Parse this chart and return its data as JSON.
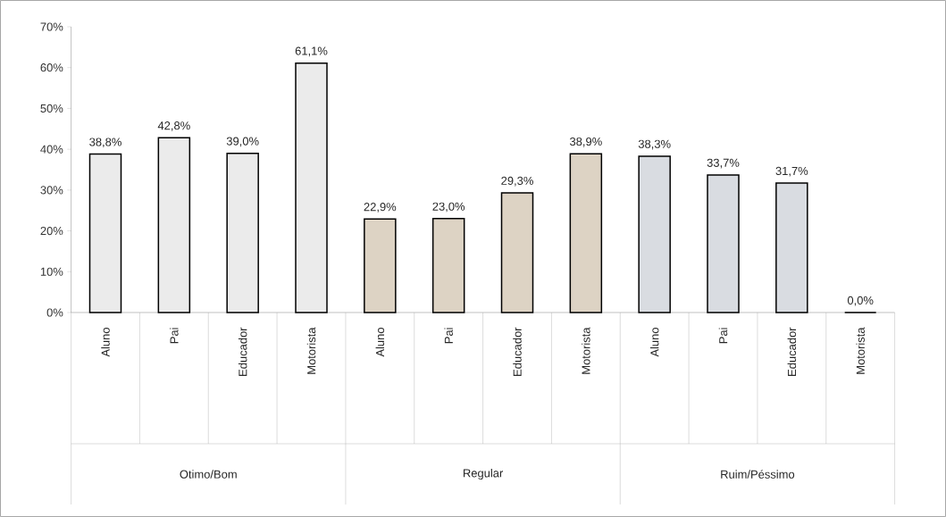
{
  "chart_data": {
    "type": "bar",
    "categories": [
      "Aluno",
      "Pai",
      "Educador",
      "Motorista",
      "Aluno",
      "Pai",
      "Educador",
      "Motorista",
      "Aluno",
      "Pai",
      "Educador",
      "Motorista"
    ],
    "values": [
      38.8,
      42.8,
      39.0,
      61.1,
      22.9,
      23.0,
      29.3,
      38.9,
      38.3,
      33.7,
      31.7,
      0.0
    ],
    "value_labels": [
      "38,8%",
      "42,8%",
      "39,0%",
      "61,1%",
      "22,9%",
      "23,0%",
      "29,3%",
      "38,9%",
      "38,3%",
      "33,7%",
      "31,7%",
      "0,0%"
    ],
    "colors": [
      "#ebebeb",
      "#ebebeb",
      "#ebebeb",
      "#ebebeb",
      "#ddd3c4",
      "#ddd3c4",
      "#ddd3c4",
      "#ddd3c4",
      "#d9dce1",
      "#d9dce1",
      "#d9dce1",
      "#d9dce1"
    ],
    "annotations": [
      "Otimo/Bom",
      "Regular",
      "Ruim/Péssimo"
    ],
    "ylim": [
      0,
      70
    ],
    "yticks": [
      {
        "value": 0,
        "label": "0%"
      },
      {
        "value": 10,
        "label": "10%"
      },
      {
        "value": 20,
        "label": "20%"
      },
      {
        "value": 30,
        "label": "30%"
      },
      {
        "value": 40,
        "label": "40%"
      },
      {
        "value": 50,
        "label": "50%"
      },
      {
        "value": 60,
        "label": "60%"
      },
      {
        "value": 70,
        "label": "70%"
      }
    ]
  }
}
